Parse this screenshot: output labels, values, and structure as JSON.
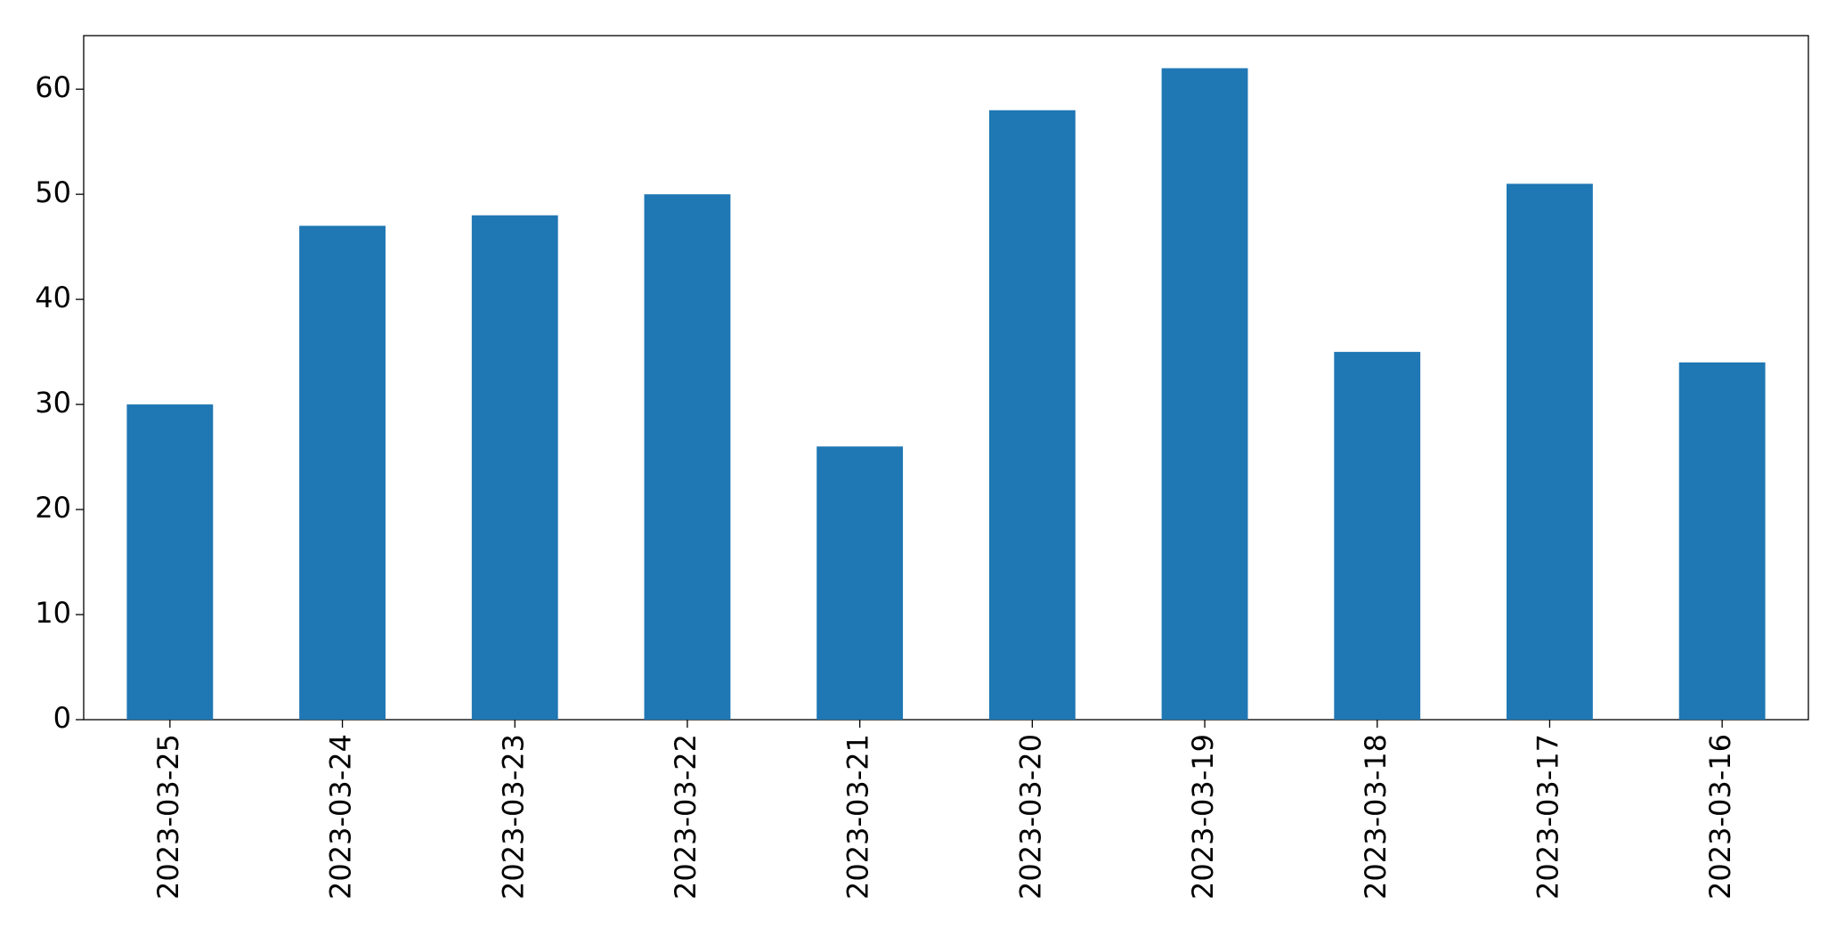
{
  "chart_data": {
    "type": "bar",
    "categories": [
      "2023-03-25",
      "2023-03-24",
      "2023-03-23",
      "2023-03-22",
      "2023-03-21",
      "2023-03-20",
      "2023-03-19",
      "2023-03-18",
      "2023-03-17",
      "2023-03-16"
    ],
    "values": [
      30,
      47,
      48,
      50,
      26,
      58,
      62,
      35,
      51,
      34
    ],
    "color": "#1f77b4",
    "ylim": [
      0,
      65.1
    ],
    "yticks": [
      0,
      10,
      20,
      30,
      40,
      50,
      60
    ],
    "grid": false
  }
}
